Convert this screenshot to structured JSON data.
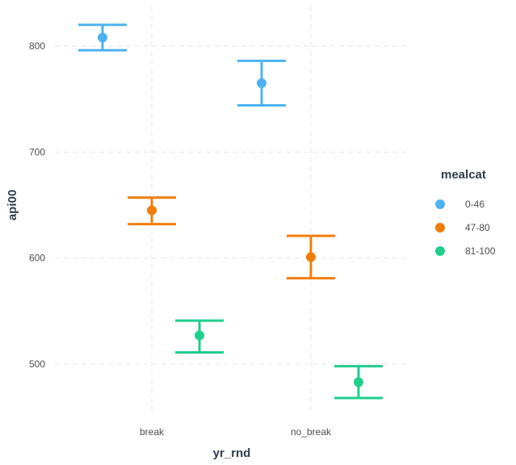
{
  "chart_data": {
    "type": "errorbar",
    "xlabel": "yr_rnd",
    "ylabel": "api00",
    "categories": [
      "break",
      "no_break"
    ],
    "ylim": [
      450,
      830
    ],
    "yticks": [
      500,
      600,
      700,
      800
    ],
    "grid": true,
    "legend": {
      "title": "mealcat",
      "position": "right"
    },
    "series": [
      {
        "name": "0-46",
        "color": "#4db3f0",
        "points": [
          {
            "x": "break",
            "y": 808,
            "ymin": 796,
            "ymax": 820
          },
          {
            "x": "no_break",
            "y": 765,
            "ymin": 744,
            "ymax": 786
          }
        ]
      },
      {
        "name": "47-80",
        "color": "#f07d0a",
        "points": [
          {
            "x": "break",
            "y": 645,
            "ymin": 632,
            "ymax": 657
          },
          {
            "x": "no_break",
            "y": 601,
            "ymin": 581,
            "ymax": 621
          }
        ]
      },
      {
        "name": "81-100",
        "color": "#1fcf8c",
        "points": [
          {
            "x": "break",
            "y": 527,
            "ymin": 511,
            "ymax": 541
          },
          {
            "x": "no_break",
            "y": 483,
            "ymin": 468,
            "ymax": 498
          }
        ]
      }
    ]
  }
}
